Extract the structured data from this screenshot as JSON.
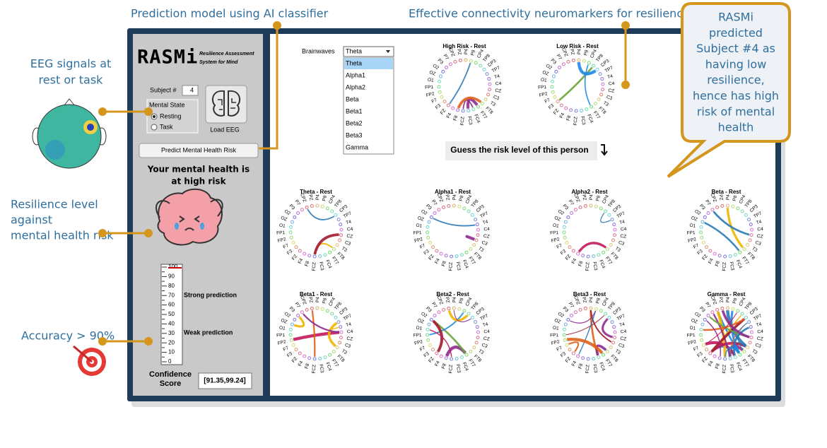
{
  "annotations": {
    "top_left": "Prediction model using AI classifier",
    "top_right": "Effective connectivity neuromarkers  for resilience",
    "eeg": [
      "EEG signals at",
      "rest or task"
    ],
    "resilience": [
      "Resilience level",
      "against",
      "mental health risk"
    ],
    "accuracy": "Accuracy > 90%",
    "callout": [
      "RASMi",
      "predicted",
      "Subject #4 as",
      "having low",
      "resilience,",
      "hence has high",
      "risk of mental",
      "health"
    ]
  },
  "app": {
    "logo": "RASMi",
    "logo_sub": [
      "Resilience Assessment",
      "System for Mind"
    ],
    "subject_label": "Subject #",
    "subject_value": "4",
    "mental_state": "Mental State",
    "states": [
      "Resting",
      "Task"
    ],
    "load_button": "Load EEG",
    "predict_button": "Predict Mental Health Risk",
    "result": [
      "Your mental health is",
      "at high risk"
    ],
    "gauge_ticks": [
      0,
      10,
      20,
      30,
      40,
      50,
      60,
      70,
      80,
      90,
      100
    ],
    "strong": "Strong prediction",
    "weak": "Weak prediction",
    "confidence_label": [
      "Confidence",
      "Score"
    ],
    "confidence_value": "[91.35,99.24]",
    "brainwaves_label": "Brainwaves",
    "selected": "Theta",
    "options": [
      "Theta",
      "Alpha1",
      "Alpha2",
      "Beta",
      "Beta1",
      "Beta2",
      "Beta3",
      "Gamma"
    ],
    "guess": "Guess the risk level of this person",
    "top_plots": [
      "High Risk - Rest",
      "Low Risk - Rest"
    ],
    "grid_plots": [
      "Theta - Rest",
      "Alpha1 - Rest",
      "Alpha2 - Rest",
      "Beta - Rest",
      "Beta1 - Rest",
      "Beta2 - Rest",
      "Beta3 - Rest",
      "Gamma - Rest"
    ],
    "electrodes": [
      "PZ",
      "P4",
      "P8",
      "CP4",
      "TP8",
      "CP3",
      "TP7",
      "T4",
      "C4",
      "CZ",
      "C3",
      "T3",
      "FT8",
      "FT7",
      "FC4",
      "FC3",
      "FCZ",
      "F8",
      "F4",
      "FZ",
      "F3",
      "F7",
      "FP2",
      "FP1",
      "O1",
      "OZ",
      "O2",
      "P3",
      "P7",
      "CPZ"
    ]
  }
}
